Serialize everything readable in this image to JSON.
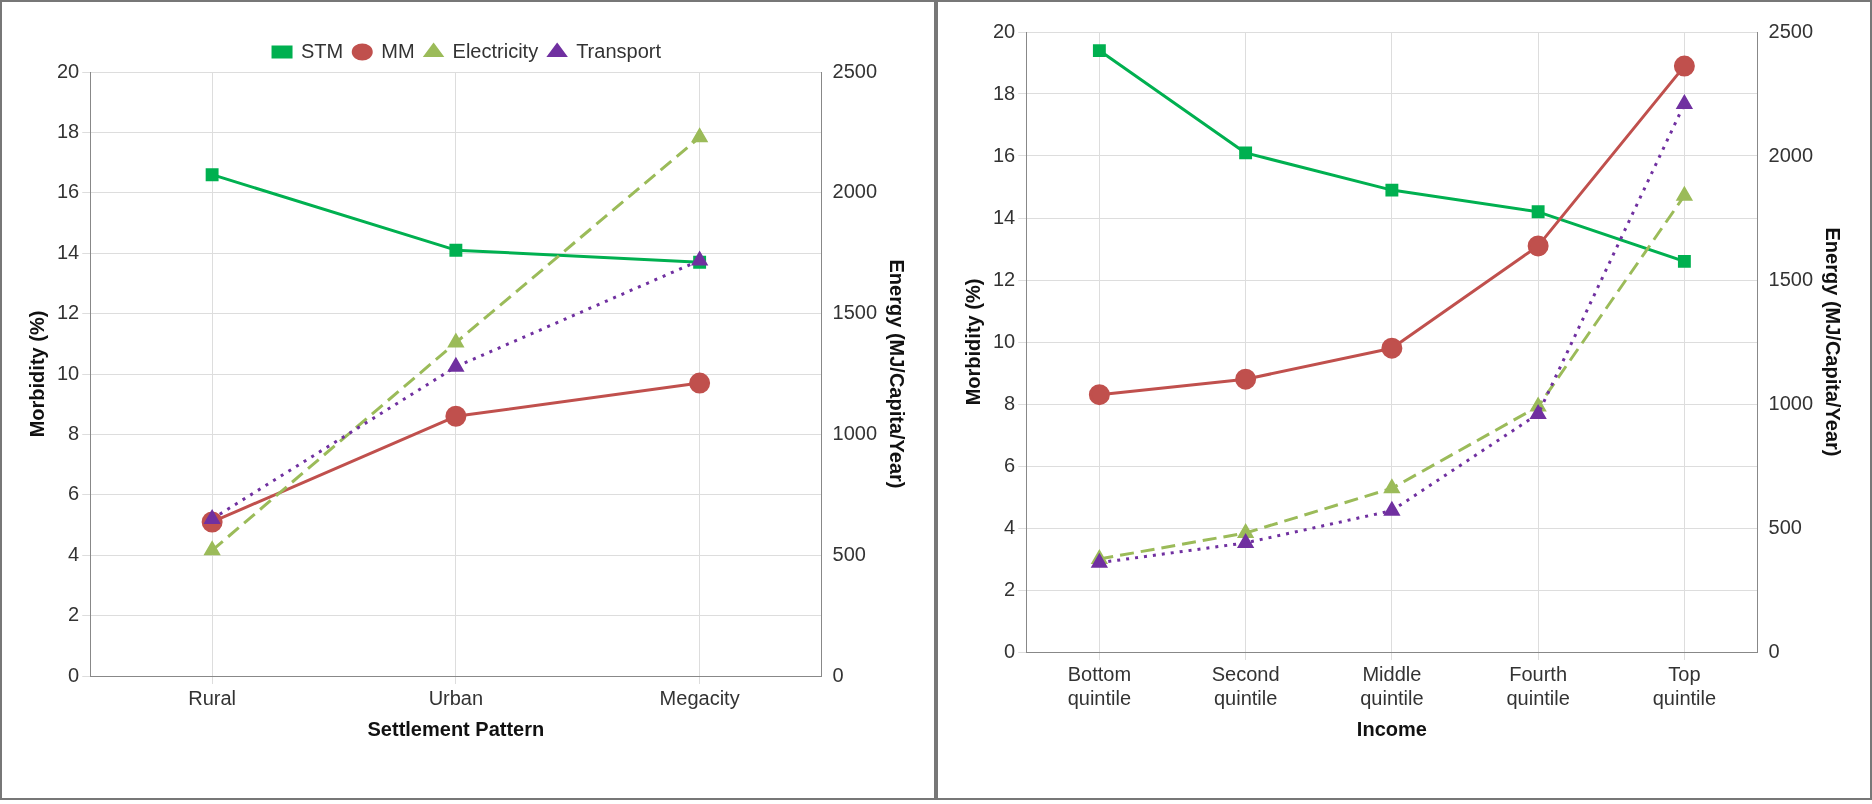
{
  "chart_data": [
    {
      "type": "line",
      "xlabel": "Settlement Pattern",
      "ylabel": "Morbidity (%)",
      "y2label": "Energy (MJ/Capita/Year)",
      "categories": [
        "Rural",
        "Urban",
        "Megacity"
      ],
      "series": [
        {
          "name": "STM",
          "color": "#00b050",
          "values": [
            16.6,
            14.1,
            13.7
          ],
          "marker": "square",
          "line_style": "solid"
        },
        {
          "name": "MM",
          "color": "#c0504d",
          "values": [
            5.1,
            8.6,
            9.7
          ],
          "marker": "circle",
          "line_style": "solid"
        },
        {
          "name": "Electricity",
          "color": "#9bbb59",
          "values": [
            520,
            1380,
            2230
          ],
          "axis": "y2",
          "marker": "triangle",
          "line_style": "dashed"
        },
        {
          "name": "Transport",
          "color": "#7030a0",
          "values": [
            650,
            1280,
            1720
          ],
          "axis": "y2",
          "marker": "triangle",
          "line_style": "dotted"
        }
      ],
      "ylim": [
        0,
        20
      ],
      "yticks": [
        0,
        2,
        4,
        6,
        8,
        10,
        12,
        14,
        16,
        18,
        20
      ],
      "y2lim": [
        0,
        2500
      ],
      "y2ticks": [
        0,
        500,
        1000,
        1500,
        2000,
        2500
      ],
      "grid": true,
      "legend": "top"
    },
    {
      "type": "line",
      "xlabel": "Income",
      "ylabel": "Morbidity (%)",
      "y2label": "Energy (MJ/Capita/Year)",
      "categories": [
        "Bottom quintile",
        "Second quintile",
        "Middle quintile",
        "Fourth quintile",
        "Top quintile"
      ],
      "series": [
        {
          "color": "#00b050",
          "values": [
            19.4,
            16.1,
            14.9,
            14.2,
            12.6
          ],
          "marker": "square",
          "line_style": "solid"
        },
        {
          "color": "#c0504d",
          "values": [
            8.3,
            8.8,
            9.8,
            13.1,
            18.9
          ],
          "marker": "circle",
          "line_style": "solid"
        },
        {
          "color": "#9bbb59",
          "values": [
            375,
            480,
            660,
            990,
            1840
          ],
          "axis": "y2",
          "marker": "triangle",
          "line_style": "dashed"
        },
        {
          "color": "#7030a0",
          "values": [
            360,
            440,
            570,
            960,
            2210
          ],
          "axis": "y2",
          "marker": "triangle",
          "line_style": "dotted"
        }
      ],
      "ylim": [
        0,
        20
      ],
      "yticks": [
        0,
        2,
        4,
        6,
        8,
        10,
        12,
        14,
        16,
        18,
        20
      ],
      "y2lim": [
        0,
        2500
      ],
      "y2ticks": [
        0,
        500,
        1000,
        1500,
        2000,
        2500
      ],
      "grid": true,
      "legend": false
    }
  ]
}
